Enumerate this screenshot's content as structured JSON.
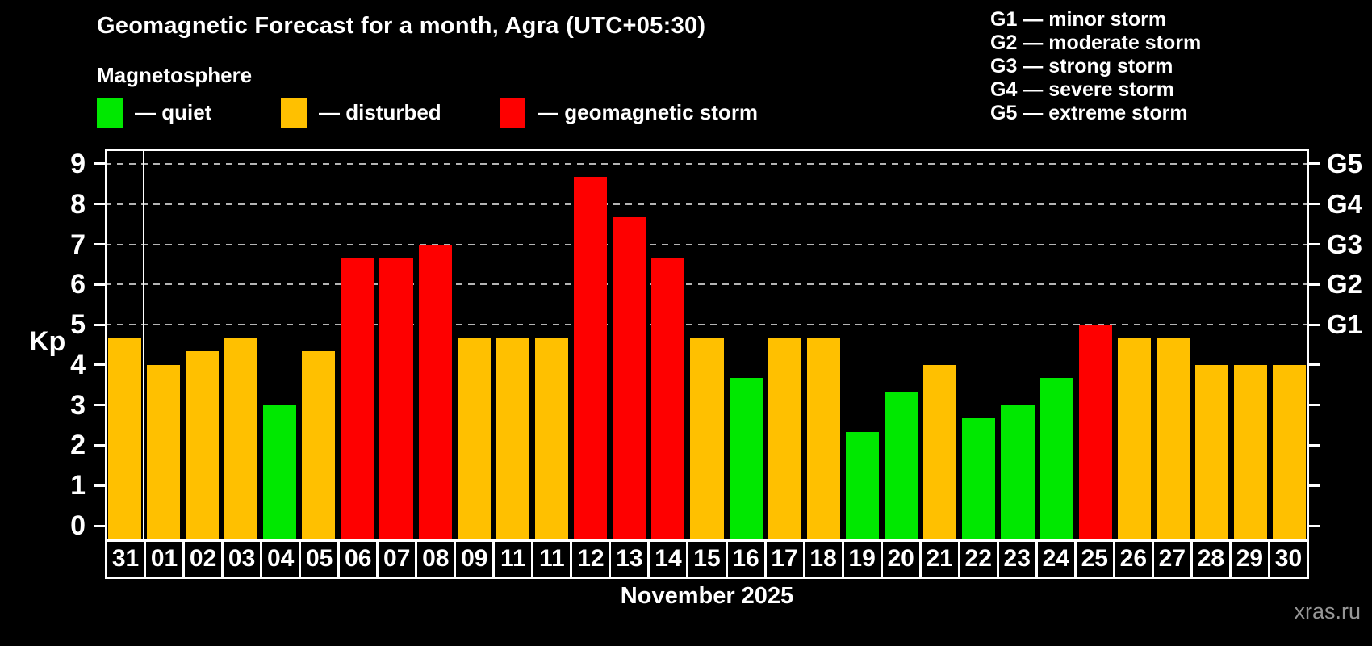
{
  "title": "Geomagnetic Forecast for a month, Agra (UTC+05:30)",
  "subtitle": "Magnetosphere",
  "legend": [
    {
      "key": "quiet",
      "label": "— quiet"
    },
    {
      "key": "disturbed",
      "label": "— disturbed"
    },
    {
      "key": "storm",
      "label": "— geomagnetic storm"
    }
  ],
  "storm_scale": [
    "G1 — minor storm",
    "G2 — moderate storm",
    "G3 — strong storm",
    "G4 — severe storm",
    "G5 — extreme storm"
  ],
  "footer": {
    "month_label": "November 2025",
    "watermark": "xras.ru"
  },
  "colors": {
    "quiet": "#00e800",
    "disturbed": "#ffc000",
    "storm": "#fe0000",
    "background": "#000000",
    "text": "#ffffff",
    "grid": "#b4b4b4",
    "watermark": "#969696"
  },
  "chart_data": {
    "type": "bar",
    "title": "Geomagnetic Forecast for a month, Agra (UTC+05:30)",
    "xlabel": "November 2025",
    "ylabel": "Kp",
    "categories": [
      "31",
      "01",
      "02",
      "03",
      "04",
      "05",
      "06",
      "07",
      "08",
      "09",
      "11",
      "11",
      "12",
      "13",
      "14",
      "15",
      "16",
      "17",
      "18",
      "19",
      "20",
      "21",
      "22",
      "23",
      "24",
      "25",
      "26",
      "27",
      "28",
      "29",
      "30"
    ],
    "values": [
      4.67,
      4.0,
      4.33,
      4.67,
      3.0,
      4.33,
      6.67,
      6.67,
      7.0,
      4.67,
      4.67,
      4.67,
      8.67,
      7.67,
      6.67,
      4.67,
      3.67,
      4.67,
      4.67,
      2.33,
      3.33,
      4.0,
      2.67,
      3.0,
      3.67,
      5.0,
      4.67,
      4.67,
      4.0,
      4.0,
      4.0
    ],
    "statuses": [
      "disturbed",
      "disturbed",
      "disturbed",
      "disturbed",
      "quiet",
      "disturbed",
      "storm",
      "storm",
      "storm",
      "disturbed",
      "disturbed",
      "disturbed",
      "storm",
      "storm",
      "storm",
      "disturbed",
      "quiet",
      "disturbed",
      "disturbed",
      "quiet",
      "quiet",
      "disturbed",
      "quiet",
      "quiet",
      "quiet",
      "storm",
      "disturbed",
      "disturbed",
      "disturbed",
      "disturbed",
      "disturbed"
    ],
    "ylim": [
      -0.34,
      9.38
    ],
    "yticks": [
      0,
      1,
      2,
      3,
      4,
      5,
      6,
      7,
      8,
      9
    ],
    "gridlines_at": [
      5,
      6,
      7,
      8,
      9
    ],
    "right_axis_labels": [
      {
        "value": 5,
        "label": "G1"
      },
      {
        "value": 6,
        "label": "G2"
      },
      {
        "value": 7,
        "label": "G3"
      },
      {
        "value": 8,
        "label": "G4"
      },
      {
        "value": 9,
        "label": "G5"
      }
    ],
    "month_separator_after_index": 0,
    "grid": "dashed horizontal lines at storm levels G1–G5",
    "legend_position": "top-left"
  }
}
